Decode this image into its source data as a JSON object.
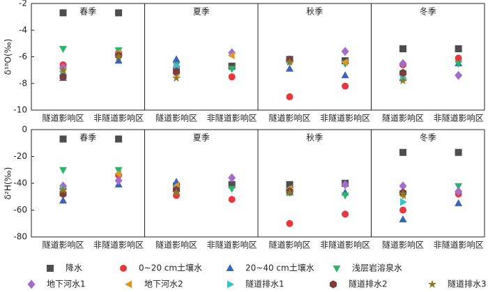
{
  "chart_data": [
    {
      "type": "scatter",
      "y_label": "δ¹⁸O(‰)",
      "ylim": [
        -10,
        -2
      ],
      "yticks": [
        -10,
        -8,
        -6,
        -4,
        -2
      ],
      "categories": [
        "隧道影响区",
        "非隧道影响区"
      ],
      "panels": [
        "春季",
        "夏季",
        "秋季",
        "冬季"
      ],
      "series": [
        {
          "name": "降水",
          "color": "#4d4d4d",
          "marker": "square",
          "values": [
            [
              -2.7,
              -2.7
            ],
            [
              -7.0,
              -6.7
            ],
            [
              -6.2,
              -6.3
            ],
            [
              -5.4,
              -5.4
            ]
          ]
        },
        {
          "name": "0~20 cm土壤水",
          "color": "#e8383d",
          "marker": "circle",
          "values": [
            [
              -6.6,
              -5.7
            ],
            [
              -7.2,
              -7.5
            ],
            [
              -9.0,
              -8.2
            ],
            [
              -6.6,
              -6.1
            ]
          ]
        },
        {
          "name": "20~40 cm土壤水",
          "color": "#3c64b4",
          "marker": "triangle-up",
          "values": [
            [
              -7.6,
              -6.3
            ],
            [
              -6.2,
              null
            ],
            [
              -6.9,
              -7.4
            ],
            [
              -7.6,
              -6.5
            ]
          ]
        },
        {
          "name": "浅层岩溶泉水",
          "color": "#2db36b",
          "marker": "triangle-down",
          "values": [
            [
              -5.4,
              -5.5
            ],
            [
              -6.6,
              -6.9
            ],
            [
              -6.4,
              -6.5
            ],
            [
              -7.5,
              -6.5
            ]
          ]
        },
        {
          "name": "地下河水1",
          "color": "#a36ec9",
          "marker": "diamond",
          "values": [
            [
              -6.8,
              -5.8
            ],
            [
              -6.8,
              -5.7
            ],
            [
              -6.3,
              -5.6
            ],
            [
              -6.5,
              -7.4
            ]
          ]
        },
        {
          "name": "地下河水2",
          "color": "#d99a2b",
          "marker": "triangle-left",
          "values": [
            [
              -7.1,
              -5.7
            ],
            [
              -7.2,
              -5.9
            ],
            [
              -6.3,
              -6.4
            ],
            [
              -7.4,
              null
            ]
          ]
        },
        {
          "name": "隧道排水1",
          "color": "#3cc0c8",
          "marker": "triangle-right",
          "values": [
            [
              -7.3,
              null
            ],
            [
              -6.7,
              null
            ],
            [
              -6.3,
              null
            ],
            [
              -7.6,
              null
            ]
          ]
        },
        {
          "name": "隧道排水2",
          "color": "#7a3f3a",
          "marker": "hexagon",
          "values": [
            [
              -7.5,
              -5.9
            ],
            [
              -7.1,
              null
            ],
            [
              -6.2,
              null
            ],
            [
              -7.2,
              null
            ]
          ]
        },
        {
          "name": "隧道排水3",
          "color": "#8a7a2a",
          "marker": "star",
          "values": [
            [
              -7.0,
              -6.0
            ],
            [
              -7.6,
              null
            ],
            [
              -6.4,
              null
            ],
            [
              -7.8,
              null
            ]
          ]
        }
      ]
    },
    {
      "type": "scatter",
      "y_label": "δ²H(‰)",
      "ylim": [
        -80,
        0
      ],
      "yticks": [
        -80,
        -60,
        -40,
        -20,
        0
      ],
      "categories": [
        "隧道影响区",
        "非隧道影响区"
      ],
      "panels": [
        "春季",
        "夏季",
        "秋季",
        "冬季"
      ],
      "series": [
        {
          "name": "降水",
          "color": "#4d4d4d",
          "marker": "square",
          "values": [
            [
              -7,
              -7
            ],
            [
              -42,
              -41
            ],
            [
              -41,
              -40
            ],
            [
              -17,
              -17
            ]
          ]
        },
        {
          "name": "0~20 cm土壤水",
          "color": "#e8383d",
          "marker": "circle",
          "values": [
            [
              -44,
              -34
            ],
            [
              -49,
              -52
            ],
            [
              -70,
              -63
            ],
            [
              -60,
              -48
            ]
          ]
        },
        {
          "name": "20~40 cm土壤水",
          "color": "#3c64b4",
          "marker": "triangle-up",
          "values": [
            [
              -53,
              -41
            ],
            [
              -39,
              null
            ],
            [
              -47,
              -47
            ],
            [
              -67,
              -55
            ]
          ]
        },
        {
          "name": "浅层岩溶泉水",
          "color": "#2db36b",
          "marker": "triangle-down",
          "values": [
            [
              -30,
              -30
            ],
            [
              -44,
              -44
            ],
            [
              -47,
              -49
            ],
            [
              -49,
              -42
            ]
          ]
        },
        {
          "name": "地下河水1",
          "color": "#a36ec9",
          "marker": "diamond",
          "values": [
            [
              -42,
              -38
            ],
            [
              -43,
              -36
            ],
            [
              -45,
              -41
            ],
            [
              -42,
              -46
            ]
          ]
        },
        {
          "name": "地下河水2",
          "color": "#d99a2b",
          "marker": "triangle-left",
          "values": [
            [
              -46,
              -33
            ],
            [
              -42,
              null
            ],
            [
              -44,
              null
            ],
            [
              -49,
              null
            ]
          ]
        },
        {
          "name": "隧道排水1",
          "color": "#3cc0c8",
          "marker": "triangle-right",
          "values": [
            [
              -44,
              null
            ],
            [
              -44,
              null
            ],
            [
              -46,
              null
            ],
            [
              -54,
              null
            ]
          ]
        },
        {
          "name": "隧道排水2",
          "color": "#7a3f3a",
          "marker": "hexagon",
          "values": [
            [
              -48,
              null
            ],
            [
              -45,
              null
            ],
            [
              -46,
              null
            ],
            [
              -47,
              null
            ]
          ]
        },
        {
          "name": "隧道排水3",
          "color": "#8a7a2a",
          "marker": "star",
          "values": [
            [
              -45,
              null
            ],
            [
              -47,
              null
            ],
            [
              -47,
              null
            ],
            [
              -48,
              null
            ]
          ]
        }
      ]
    }
  ]
}
